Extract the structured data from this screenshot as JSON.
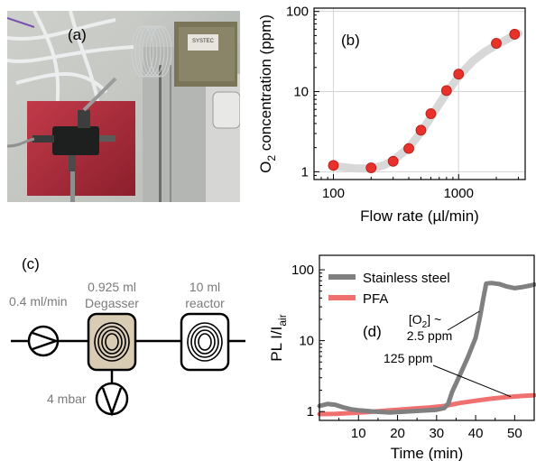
{
  "figure": {
    "panel_a": {
      "label": "(a)",
      "photo_text": "SYSTEC"
    },
    "panel_c": {
      "label": "(c)",
      "pump_rate": "0.4 ml/min",
      "degasser_volume": "0.925 ml",
      "degasser_label": "Degasser",
      "reactor_volume": "10 ml",
      "reactor_label": "reactor",
      "vacuum": "4 mbar"
    }
  },
  "chart_data": [
    {
      "id": "b",
      "type": "scatter",
      "panel_label": "(b)",
      "xlabel": "Flow rate (µl/min)",
      "ylabel_main": "O",
      "ylabel_sub": "2",
      "ylabel_rest": " concentration (ppm)",
      "x_scale": "log",
      "y_scale": "log",
      "xlim": [
        70,
        3400
      ],
      "ylim": [
        0.8,
        110
      ],
      "x_ticks": [
        100,
        1000
      ],
      "x_tick_labels": [
        "100",
        "1000"
      ],
      "y_ticks": [
        1,
        10,
        100
      ],
      "y_tick_labels": [
        "1",
        "10",
        "100"
      ],
      "grid": true,
      "marker_color": "#e8312a",
      "fit_color": "#d8d8d8",
      "points": [
        {
          "x": 100,
          "y": 1.2
        },
        {
          "x": 200,
          "y": 1.12
        },
        {
          "x": 300,
          "y": 1.35
        },
        {
          "x": 400,
          "y": 1.95
        },
        {
          "x": 500,
          "y": 3.3
        },
        {
          "x": 600,
          "y": 5.3
        },
        {
          "x": 800,
          "y": 10.3
        },
        {
          "x": 1000,
          "y": 16.5
        },
        {
          "x": 2000,
          "y": 40
        },
        {
          "x": 2800,
          "y": 52
        }
      ],
      "fit_curve": [
        {
          "x": 100,
          "y": 1.18
        },
        {
          "x": 150,
          "y": 1.1
        },
        {
          "x": 200,
          "y": 1.1
        },
        {
          "x": 250,
          "y": 1.2
        },
        {
          "x": 300,
          "y": 1.38
        },
        {
          "x": 400,
          "y": 2.0
        },
        {
          "x": 500,
          "y": 3.1
        },
        {
          "x": 600,
          "y": 4.8
        },
        {
          "x": 700,
          "y": 7.0
        },
        {
          "x": 800,
          "y": 9.6
        },
        {
          "x": 1000,
          "y": 15.5
        },
        {
          "x": 1300,
          "y": 24
        },
        {
          "x": 1600,
          "y": 31
        },
        {
          "x": 2000,
          "y": 38
        },
        {
          "x": 2500,
          "y": 46
        },
        {
          "x": 3000,
          "y": 53
        }
      ]
    },
    {
      "id": "d",
      "type": "line",
      "panel_label": "(d)",
      "xlabel": "Time (min)",
      "ylabel_main": "PL I/I",
      "ylabel_sub": "air",
      "x_scale": "linear",
      "y_scale": "log",
      "xlim": [
        0,
        55
      ],
      "ylim": [
        0.75,
        160
      ],
      "x_ticks": [
        10,
        20,
        30,
        40,
        50
      ],
      "x_tick_labels": [
        "10",
        "20",
        "30",
        "40",
        "50"
      ],
      "y_ticks": [
        1,
        10,
        100
      ],
      "y_tick_labels": [
        "1",
        "10",
        "100"
      ],
      "legend_position": "top-left",
      "series": [
        {
          "name": "Stainless steel",
          "color": "#808080",
          "points": [
            [
              0,
              1.2
            ],
            [
              2,
              1.28
            ],
            [
              4,
              1.25
            ],
            [
              6,
              1.15
            ],
            [
              8,
              1.08
            ],
            [
              10,
              1.04
            ],
            [
              14,
              1.0
            ],
            [
              18,
              0.97
            ],
            [
              22,
              1.0
            ],
            [
              26,
              1.03
            ],
            [
              30,
              1.06
            ],
            [
              32,
              1.12
            ],
            [
              33,
              1.3
            ],
            [
              34,
              1.9
            ],
            [
              36,
              3.3
            ],
            [
              38,
              5.8
            ],
            [
              40,
              11
            ],
            [
              41,
              20
            ],
            [
              42,
              40
            ],
            [
              42.7,
              64
            ],
            [
              44,
              65
            ],
            [
              46,
              63
            ],
            [
              48,
              58
            ],
            [
              50,
              55
            ],
            [
              52,
              57
            ],
            [
              54,
              60
            ],
            [
              55,
              62
            ]
          ]
        },
        {
          "name": "PFA",
          "color": "#f07070",
          "points": [
            [
              0,
              0.92
            ],
            [
              4,
              0.93
            ],
            [
              8,
              0.95
            ],
            [
              12,
              0.98
            ],
            [
              16,
              1.02
            ],
            [
              20,
              1.06
            ],
            [
              24,
              1.1
            ],
            [
              28,
              1.14
            ],
            [
              32,
              1.2
            ],
            [
              36,
              1.32
            ],
            [
              40,
              1.42
            ],
            [
              44,
              1.52
            ],
            [
              48,
              1.6
            ],
            [
              52,
              1.66
            ],
            [
              55,
              1.7
            ]
          ]
        }
      ],
      "annotations": [
        {
          "text_1": "[O",
          "sub": "2",
          "text_2": "] ~",
          "text_3": "2.5 ppm",
          "target": {
            "x": 41,
            "y": 26
          }
        },
        {
          "text_1": "125 ppm",
          "target": {
            "x": 49,
            "y": 1.62
          }
        }
      ]
    }
  ]
}
